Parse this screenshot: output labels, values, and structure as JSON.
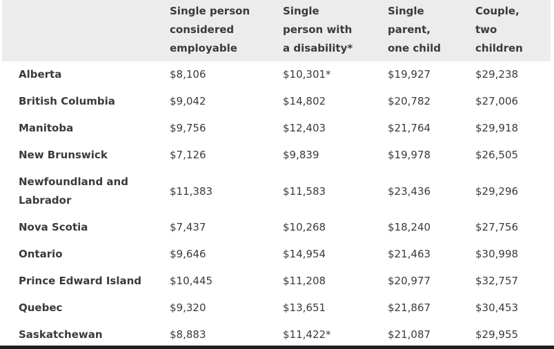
{
  "table": {
    "headers": [
      {
        "lines": [
          "",
          "",
          ""
        ]
      },
      {
        "lines": [
          "Single person",
          "considered",
          "employable"
        ]
      },
      {
        "lines": [
          "Single",
          "person with",
          "a disability*"
        ]
      },
      {
        "lines": [
          "Single",
          "parent,",
          "one child"
        ]
      },
      {
        "lines": [
          "Couple,",
          "two",
          "children"
        ]
      }
    ],
    "rows": [
      {
        "province": [
          "Alberta"
        ],
        "values": [
          "$8,106",
          "$10,301*",
          "$19,927",
          "$29,238"
        ]
      },
      {
        "province": [
          "British Columbia"
        ],
        "values": [
          "$9,042",
          "$14,802",
          "$20,782",
          "$27,006"
        ]
      },
      {
        "province": [
          "Manitoba"
        ],
        "values": [
          "$9,756",
          "$12,403",
          "$21,764",
          "$29,918"
        ]
      },
      {
        "province": [
          "New Brunswick"
        ],
        "values": [
          "$7,126",
          "$9,839",
          "$19,978",
          "$26,505"
        ]
      },
      {
        "province": [
          "Newfoundland and",
          "Labrador"
        ],
        "values": [
          "$11,383",
          "$11,583",
          "$23,436",
          "$29,296"
        ]
      },
      {
        "province": [
          "Nova Scotia"
        ],
        "values": [
          "$7,437",
          "$10,268",
          "$18,240",
          "$27,756"
        ]
      },
      {
        "province": [
          "Ontario"
        ],
        "values": [
          "$9,646",
          "$14,954",
          "$21,463",
          "$30,998"
        ]
      },
      {
        "province": [
          "Prince Edward Island"
        ],
        "values": [
          "$10,445",
          "$11,208",
          "$20,977",
          "$32,757"
        ]
      },
      {
        "province": [
          "Quebec"
        ],
        "values": [
          "$9,320",
          "$13,651",
          "$21,867",
          "$30,453"
        ]
      },
      {
        "province": [
          "Saskatchewan"
        ],
        "values": [
          "$8,883",
          "$11,422*",
          "$21,087",
          "$29,955"
        ]
      }
    ]
  },
  "colors": {
    "header_bg": "#ececec",
    "text": "#3a3a3a",
    "bottom_bar": "#1e1e1e"
  }
}
